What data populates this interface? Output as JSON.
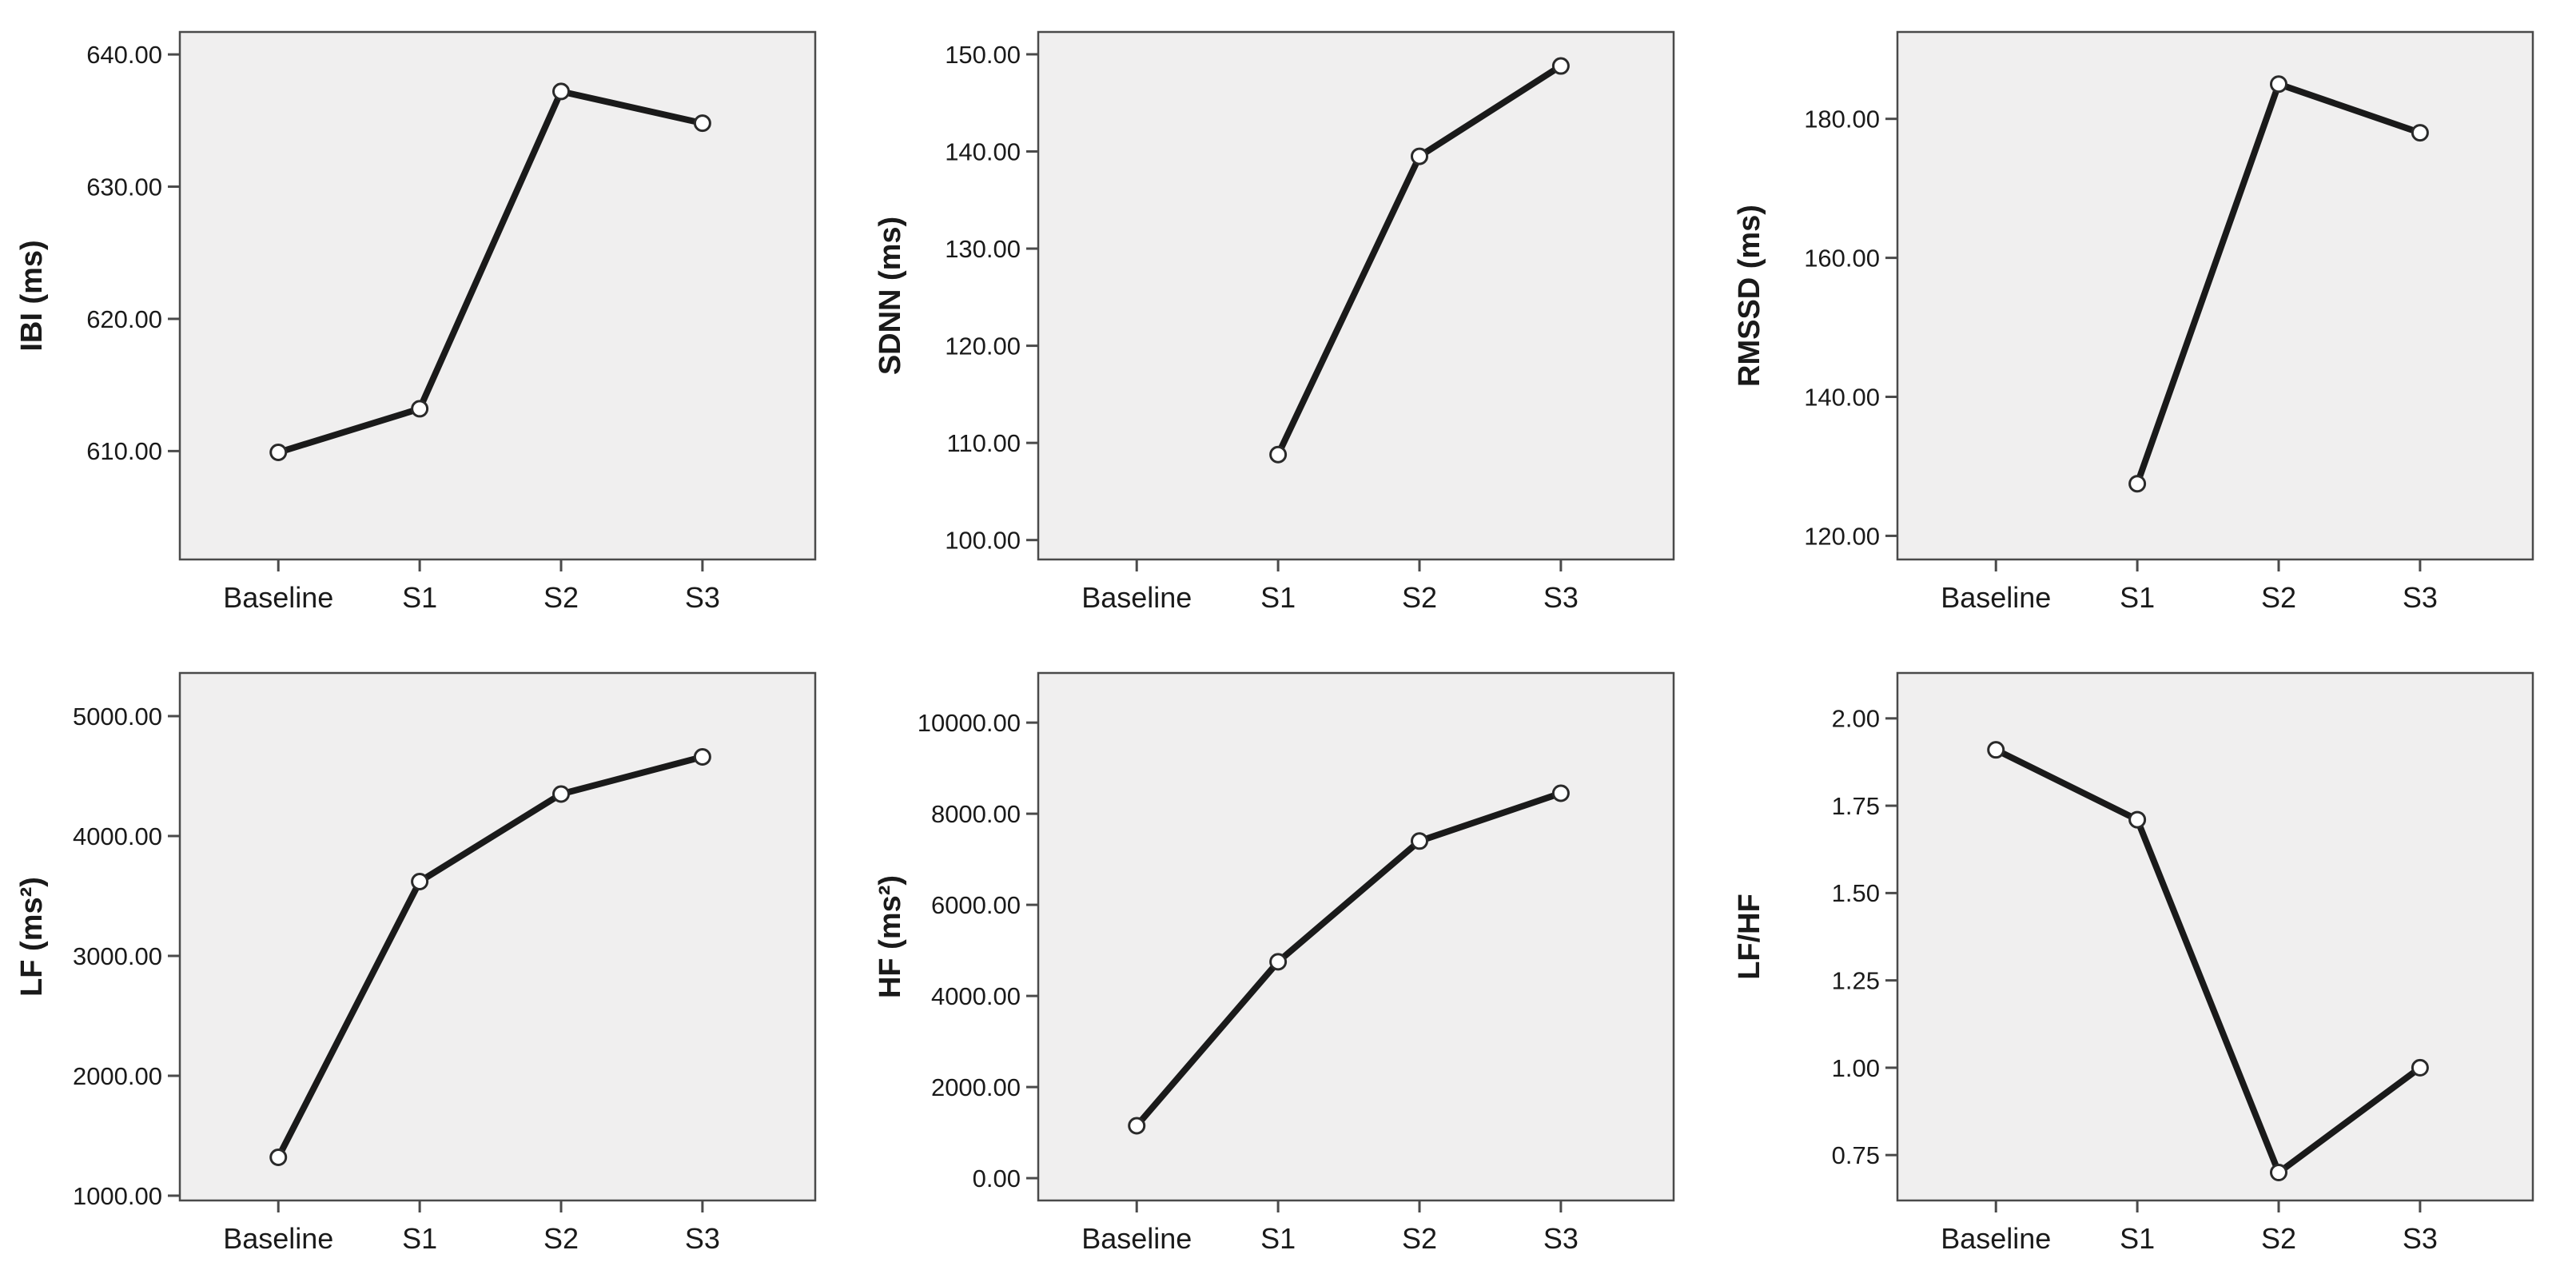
{
  "page": {
    "title": "HRV line charts figure",
    "background": "#ffffff"
  },
  "colors": {
    "plot_bg": "#f0efef",
    "frame": "#4a4a4a",
    "axis": "#4a4a4a",
    "line": "#1a1a1a",
    "marker_fill": "#ffffff",
    "marker_stroke": "#2a2a2a",
    "text": "#1a1a1a"
  },
  "chart_data": [
    {
      "id": "ibi",
      "type": "line",
      "title": "",
      "xlabel": "",
      "ylabel": "IBI (ms)",
      "categories": [
        "Baseline",
        "S1",
        "S2",
        "S3"
      ],
      "values": [
        609.9,
        613.2,
        637.2,
        634.8
      ],
      "ytick_labels": [
        "610.00",
        "620.00",
        "630.00",
        "640.00"
      ],
      "ylim": [
        601.8,
        641.7
      ],
      "grid": false,
      "legend_position": "none",
      "marker": "open-circle"
    },
    {
      "id": "sdnn",
      "type": "line",
      "title": "",
      "xlabel": "",
      "ylabel": "SDNN (ms)",
      "categories": [
        "Baseline",
        "S1",
        "S2",
        "S3"
      ],
      "values": [
        null,
        108.8,
        139.5,
        148.8
      ],
      "ytick_labels": [
        "100.00",
        "110.00",
        "120.00",
        "130.00",
        "140.00",
        "150.00"
      ],
      "ylim": [
        98.0,
        152.3
      ],
      "grid": false,
      "legend_position": "none",
      "marker": "open-circle"
    },
    {
      "id": "rmssd",
      "type": "line",
      "title": "",
      "xlabel": "",
      "ylabel": "RMSSD (ms)",
      "categories": [
        "Baseline",
        "S1",
        "S2",
        "S3"
      ],
      "values": [
        null,
        127.5,
        185.0,
        178.0
      ],
      "ytick_labels": [
        "120.00",
        "140.00",
        "160.00",
        "180.00"
      ],
      "ylim": [
        116.6,
        192.5
      ],
      "grid": false,
      "legend_position": "none",
      "marker": "open-circle"
    },
    {
      "id": "lf",
      "type": "line",
      "title": "",
      "xlabel": "",
      "ylabel": "LF (ms²)",
      "categories": [
        "Baseline",
        "S1",
        "S2",
        "S3"
      ],
      "values": [
        1320,
        3620,
        4350,
        4660
      ],
      "ytick_labels": [
        "1000.00",
        "2000.00",
        "3000.00",
        "4000.00",
        "5000.00"
      ],
      "ylim": [
        960,
        5360
      ],
      "grid": false,
      "legend_position": "none",
      "marker": "open-circle"
    },
    {
      "id": "hf",
      "type": "line",
      "title": "",
      "xlabel": "",
      "ylabel": "HF (ms²)",
      "categories": [
        "Baseline",
        "S1",
        "S2",
        "S3"
      ],
      "values": [
        1150,
        4750,
        7400,
        8450
      ],
      "ytick_labels": [
        "0.00",
        "2000.00",
        "4000.00",
        "6000.00",
        "8000.00",
        "10000.00"
      ],
      "ylim": [
        -490,
        11090
      ],
      "grid": false,
      "legend_position": "none",
      "marker": "open-circle"
    },
    {
      "id": "lfhf",
      "type": "line",
      "title": "",
      "xlabel": "",
      "ylabel": "LF/HF",
      "categories": [
        "Baseline",
        "S1",
        "S2",
        "S3"
      ],
      "values": [
        1.91,
        1.71,
        0.7,
        1.0
      ],
      "ytick_labels": [
        "0.75",
        "1.00",
        "1.25",
        "1.50",
        "1.75",
        "2.00"
      ],
      "ylim": [
        0.62,
        2.13
      ],
      "grid": false,
      "legend_position": "none",
      "marker": "open-circle"
    }
  ]
}
